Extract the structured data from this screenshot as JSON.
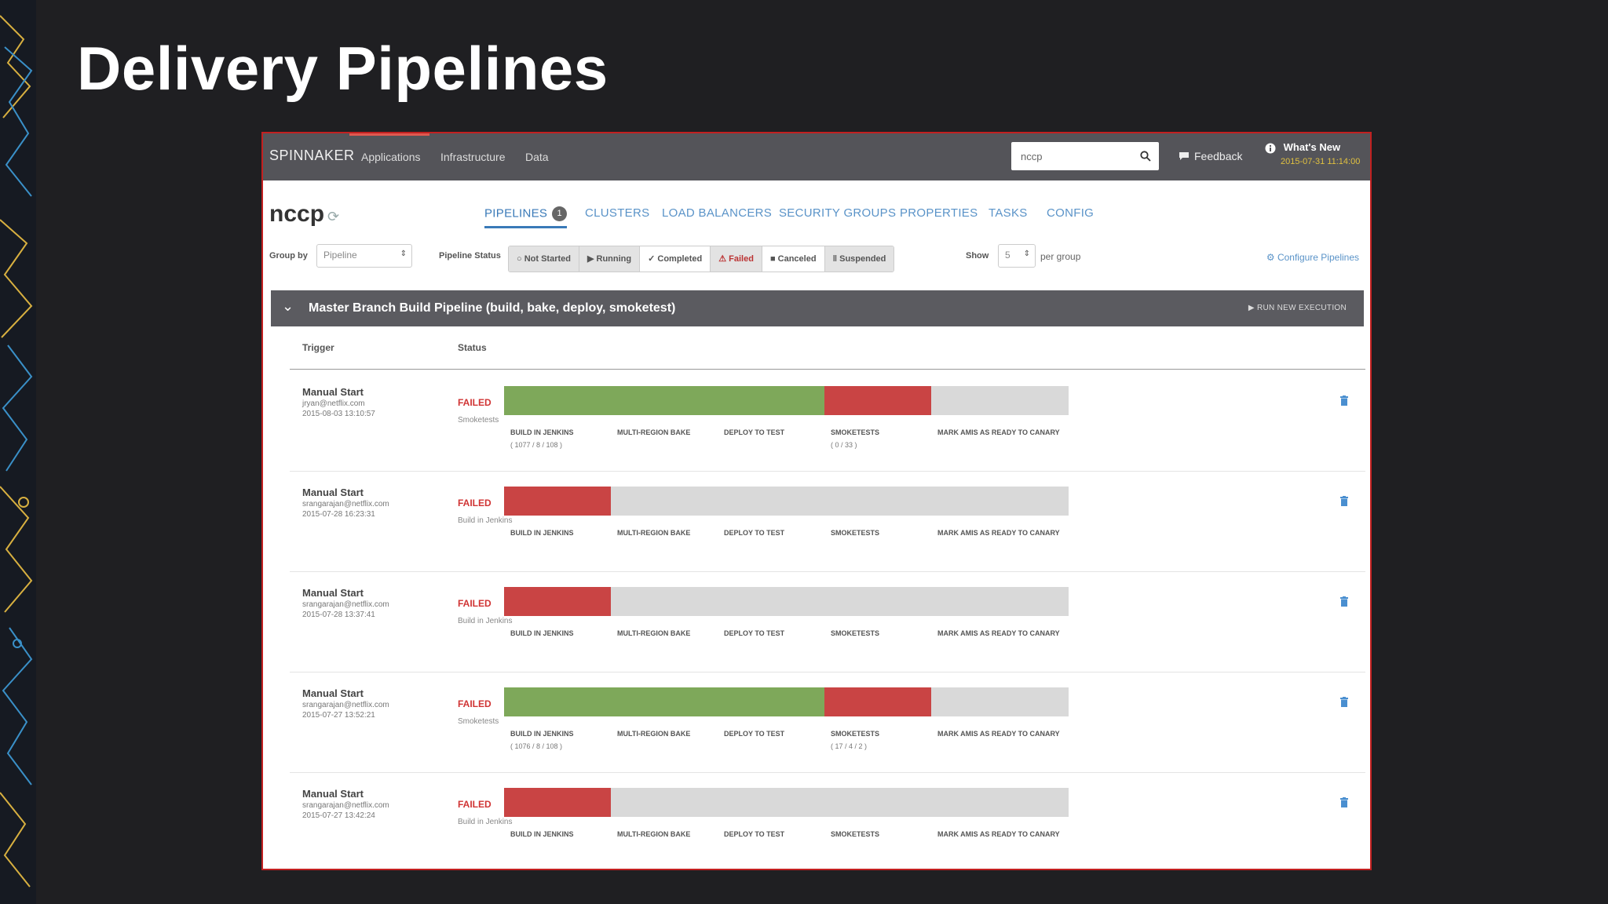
{
  "slide": {
    "title": "Delivery Pipelines"
  },
  "topnav": {
    "brand": "SPINNAKER",
    "links": [
      "Applications",
      "Infrastructure",
      "Data"
    ],
    "search_value": "nccp",
    "feedback": "Feedback",
    "whats_new": "What's New",
    "whats_new_date": "2015-07-31 11:14:00"
  },
  "app": {
    "name": "nccp",
    "tabs": [
      "PIPELINES",
      "CLUSTERS",
      "LOAD BALANCERS",
      "SECURITY GROUPS",
      "PROPERTIES",
      "TASKS",
      "CONFIG"
    ],
    "pipelines_badge": "1"
  },
  "filter": {
    "group_by_label": "Group by",
    "group_by_value": "Pipeline",
    "status_label": "Pipeline Status",
    "statuses": [
      "Not Started",
      "Running",
      "Completed",
      "Failed",
      "Canceled",
      "Suspended"
    ],
    "show_label": "Show",
    "show_value": "5",
    "per_group": "per group",
    "configure": "Configure Pipelines"
  },
  "pipeline": {
    "name": "Master Branch Build Pipeline (build, bake, deploy, smoketest)",
    "run_label": "RUN NEW EXECUTION",
    "col_trigger": "Trigger",
    "col_status": "Status",
    "stage_names": [
      "BUILD IN JENKINS",
      "MULTI-REGION BAKE",
      "DEPLOY TO TEST",
      "SMOKETESTS",
      "MARK AMIS AS READY TO CANARY"
    ],
    "executions": [
      {
        "trigger": "Manual Start",
        "user": "jryan@netflix.com",
        "time": "2015-08-03 13:10:57",
        "status": "FAILED",
        "detail": "Smoketests",
        "stages": [
          "succeeded",
          "succeeded",
          "succeeded",
          "failed",
          "not-started"
        ],
        "counts": [
          "( 1077 / 8 / 108 )",
          "",
          "",
          "( 0 / 33 )",
          ""
        ]
      },
      {
        "trigger": "Manual Start",
        "user": "srangarajan@netflix.com",
        "time": "2015-07-28 16:23:31",
        "status": "FAILED",
        "detail": "Build in Jenkins",
        "stages": [
          "failed",
          "not-started",
          "not-started",
          "not-started",
          "not-started"
        ],
        "counts": [
          "",
          "",
          "",
          "",
          ""
        ]
      },
      {
        "trigger": "Manual Start",
        "user": "srangarajan@netflix.com",
        "time": "2015-07-28 13:37:41",
        "status": "FAILED",
        "detail": "Build in Jenkins",
        "stages": [
          "failed",
          "not-started",
          "not-started",
          "not-started",
          "not-started"
        ],
        "counts": [
          "",
          "",
          "",
          "",
          ""
        ]
      },
      {
        "trigger": "Manual Start",
        "user": "srangarajan@netflix.com",
        "time": "2015-07-27 13:52:21",
        "status": "FAILED",
        "detail": "Smoketests",
        "stages": [
          "succeeded",
          "succeeded",
          "succeeded",
          "failed",
          "not-started"
        ],
        "counts": [
          "( 1076 / 8 / 108 )",
          "",
          "",
          "( 17 / 4 / 2 )",
          ""
        ]
      },
      {
        "trigger": "Manual Start",
        "user": "srangarajan@netflix.com",
        "time": "2015-07-27 13:42:24",
        "status": "FAILED",
        "detail": "Build in Jenkins",
        "stages": [
          "failed",
          "not-started",
          "not-started",
          "not-started",
          "not-started"
        ],
        "counts": [
          "",
          "",
          "",
          "",
          ""
        ]
      }
    ]
  },
  "colors": {
    "stage_succeeded": "#7ea85a",
    "stage_failed": "#c94444",
    "stage_not_started": "#d9d9d9",
    "accent_blue": "#5a93c8",
    "failed_text": "#d03434",
    "slide_bg": "#1f1f22"
  }
}
